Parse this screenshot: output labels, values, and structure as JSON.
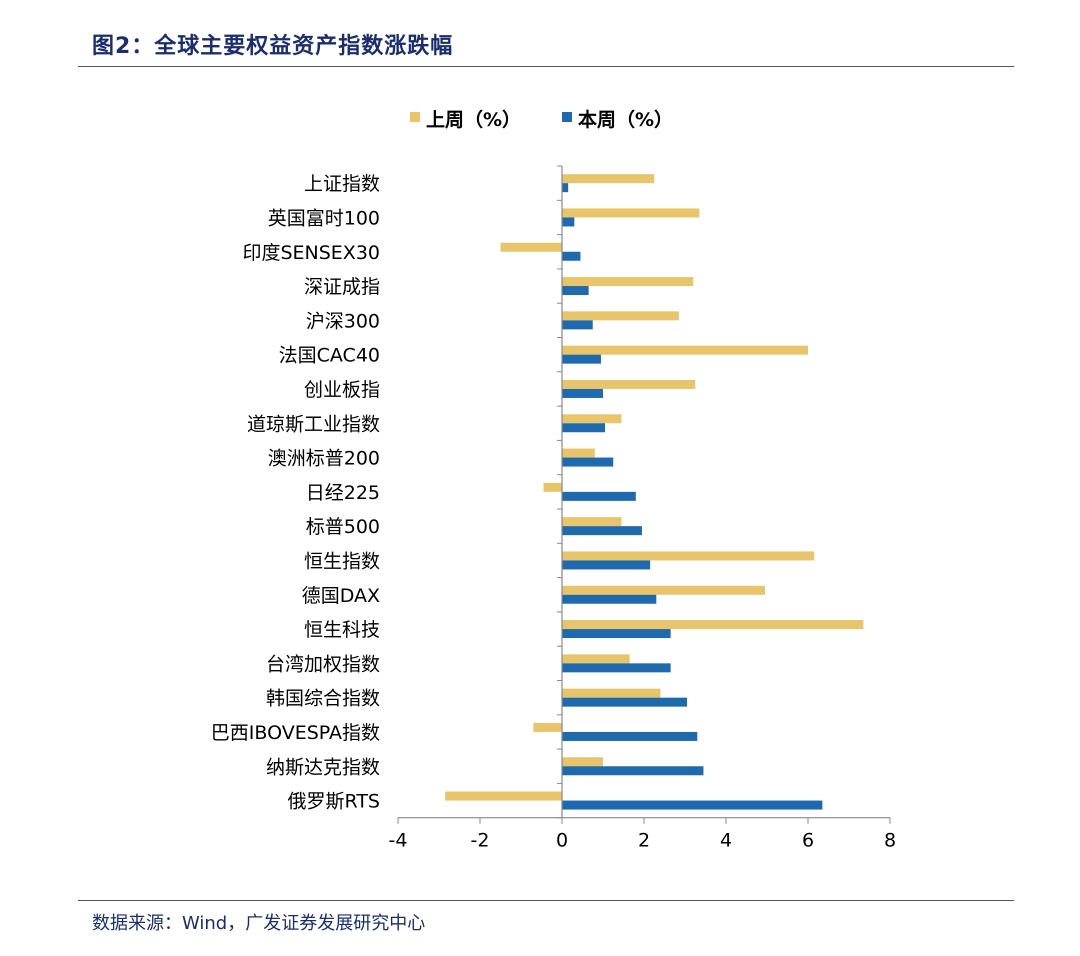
{
  "figure": {
    "title": "图2：全球主要权益资产指数涨跌幅",
    "source": "数据来源：Wind，广发证券发展研究中心"
  },
  "chart_data": {
    "type": "bar",
    "orientation": "horizontal",
    "categories": [
      "上证指数",
      "英国富时100",
      "印度SENSEX30",
      "深证成指",
      "沪深300",
      "法国CAC40",
      "创业板指",
      "道琼斯工业指数",
      "澳洲标普200",
      "日经225",
      "标普500",
      "恒生指数",
      "德国DAX",
      "恒生科技",
      "台湾加权指数",
      "韩国综合指数",
      "巴西IBOVESPA指数",
      "纳斯达克指数",
      "俄罗斯RTS"
    ],
    "series": [
      {
        "name": "上周（%）",
        "color": "#E8C46A",
        "values": [
          2.25,
          3.35,
          -1.5,
          3.2,
          2.85,
          6.0,
          3.25,
          1.45,
          0.8,
          -0.45,
          1.45,
          6.15,
          4.95,
          7.35,
          1.65,
          2.4,
          -0.7,
          1.0,
          -2.85
        ]
      },
      {
        "name": "本周（%）",
        "color": "#1F6AAE",
        "values": [
          0.15,
          0.3,
          0.45,
          0.65,
          0.75,
          0.95,
          1.0,
          1.05,
          1.25,
          1.8,
          1.95,
          2.15,
          2.3,
          2.65,
          2.65,
          3.05,
          3.3,
          3.45,
          6.35
        ]
      }
    ],
    "xlim": [
      -4,
      8
    ],
    "xticks": [
      "-4",
      "-2",
      "0",
      "2",
      "4",
      "6",
      "8"
    ],
    "legend_position": "top-center",
    "grid": false
  }
}
